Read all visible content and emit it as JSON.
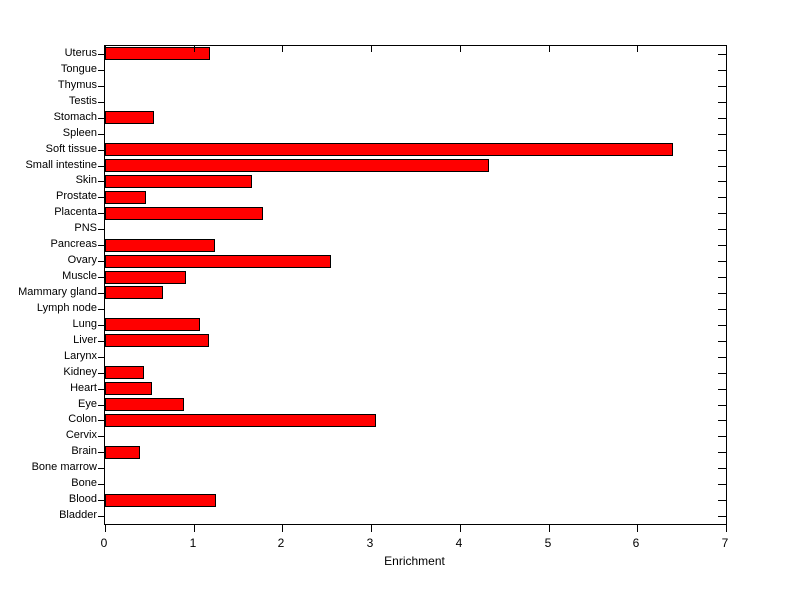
{
  "chart_data": {
    "type": "bar",
    "orientation": "horizontal",
    "title": "",
    "xlabel": "Enrichment",
    "ylabel": "",
    "xlim": [
      0,
      7
    ],
    "x_ticks": [
      0,
      1,
      2,
      3,
      4,
      5,
      6,
      7
    ],
    "grid": false,
    "legend": "none",
    "bar_color": "#FF0000",
    "bar_edge_color": "#000000",
    "axis_color": "#000000",
    "background_color": "#FFFFFF",
    "categories_top_to_bottom": [
      "Uterus",
      "Tongue",
      "Thymus",
      "Testis",
      "Stomach",
      "Spleen",
      "Soft tissue",
      "Small intestine",
      "Skin",
      "Prostate",
      "Placenta",
      "PNS",
      "Pancreas",
      "Ovary",
      "Muscle",
      "Mammary gland",
      "Lymph node",
      "Lung",
      "Liver",
      "Larynx",
      "Kidney",
      "Heart",
      "Eye",
      "Colon",
      "Cervix",
      "Brain",
      "Bone marrow",
      "Bone",
      "Blood",
      "Bladder"
    ],
    "values_top_to_bottom": [
      1.18,
      0,
      0,
      0,
      0.55,
      0,
      6.4,
      4.33,
      1.66,
      0.46,
      1.78,
      0,
      1.24,
      2.55,
      0.91,
      0.65,
      0,
      1.07,
      1.17,
      0,
      0.44,
      0.53,
      0.89,
      3.05,
      0,
      0.4,
      0,
      0,
      1.25,
      0
    ]
  }
}
